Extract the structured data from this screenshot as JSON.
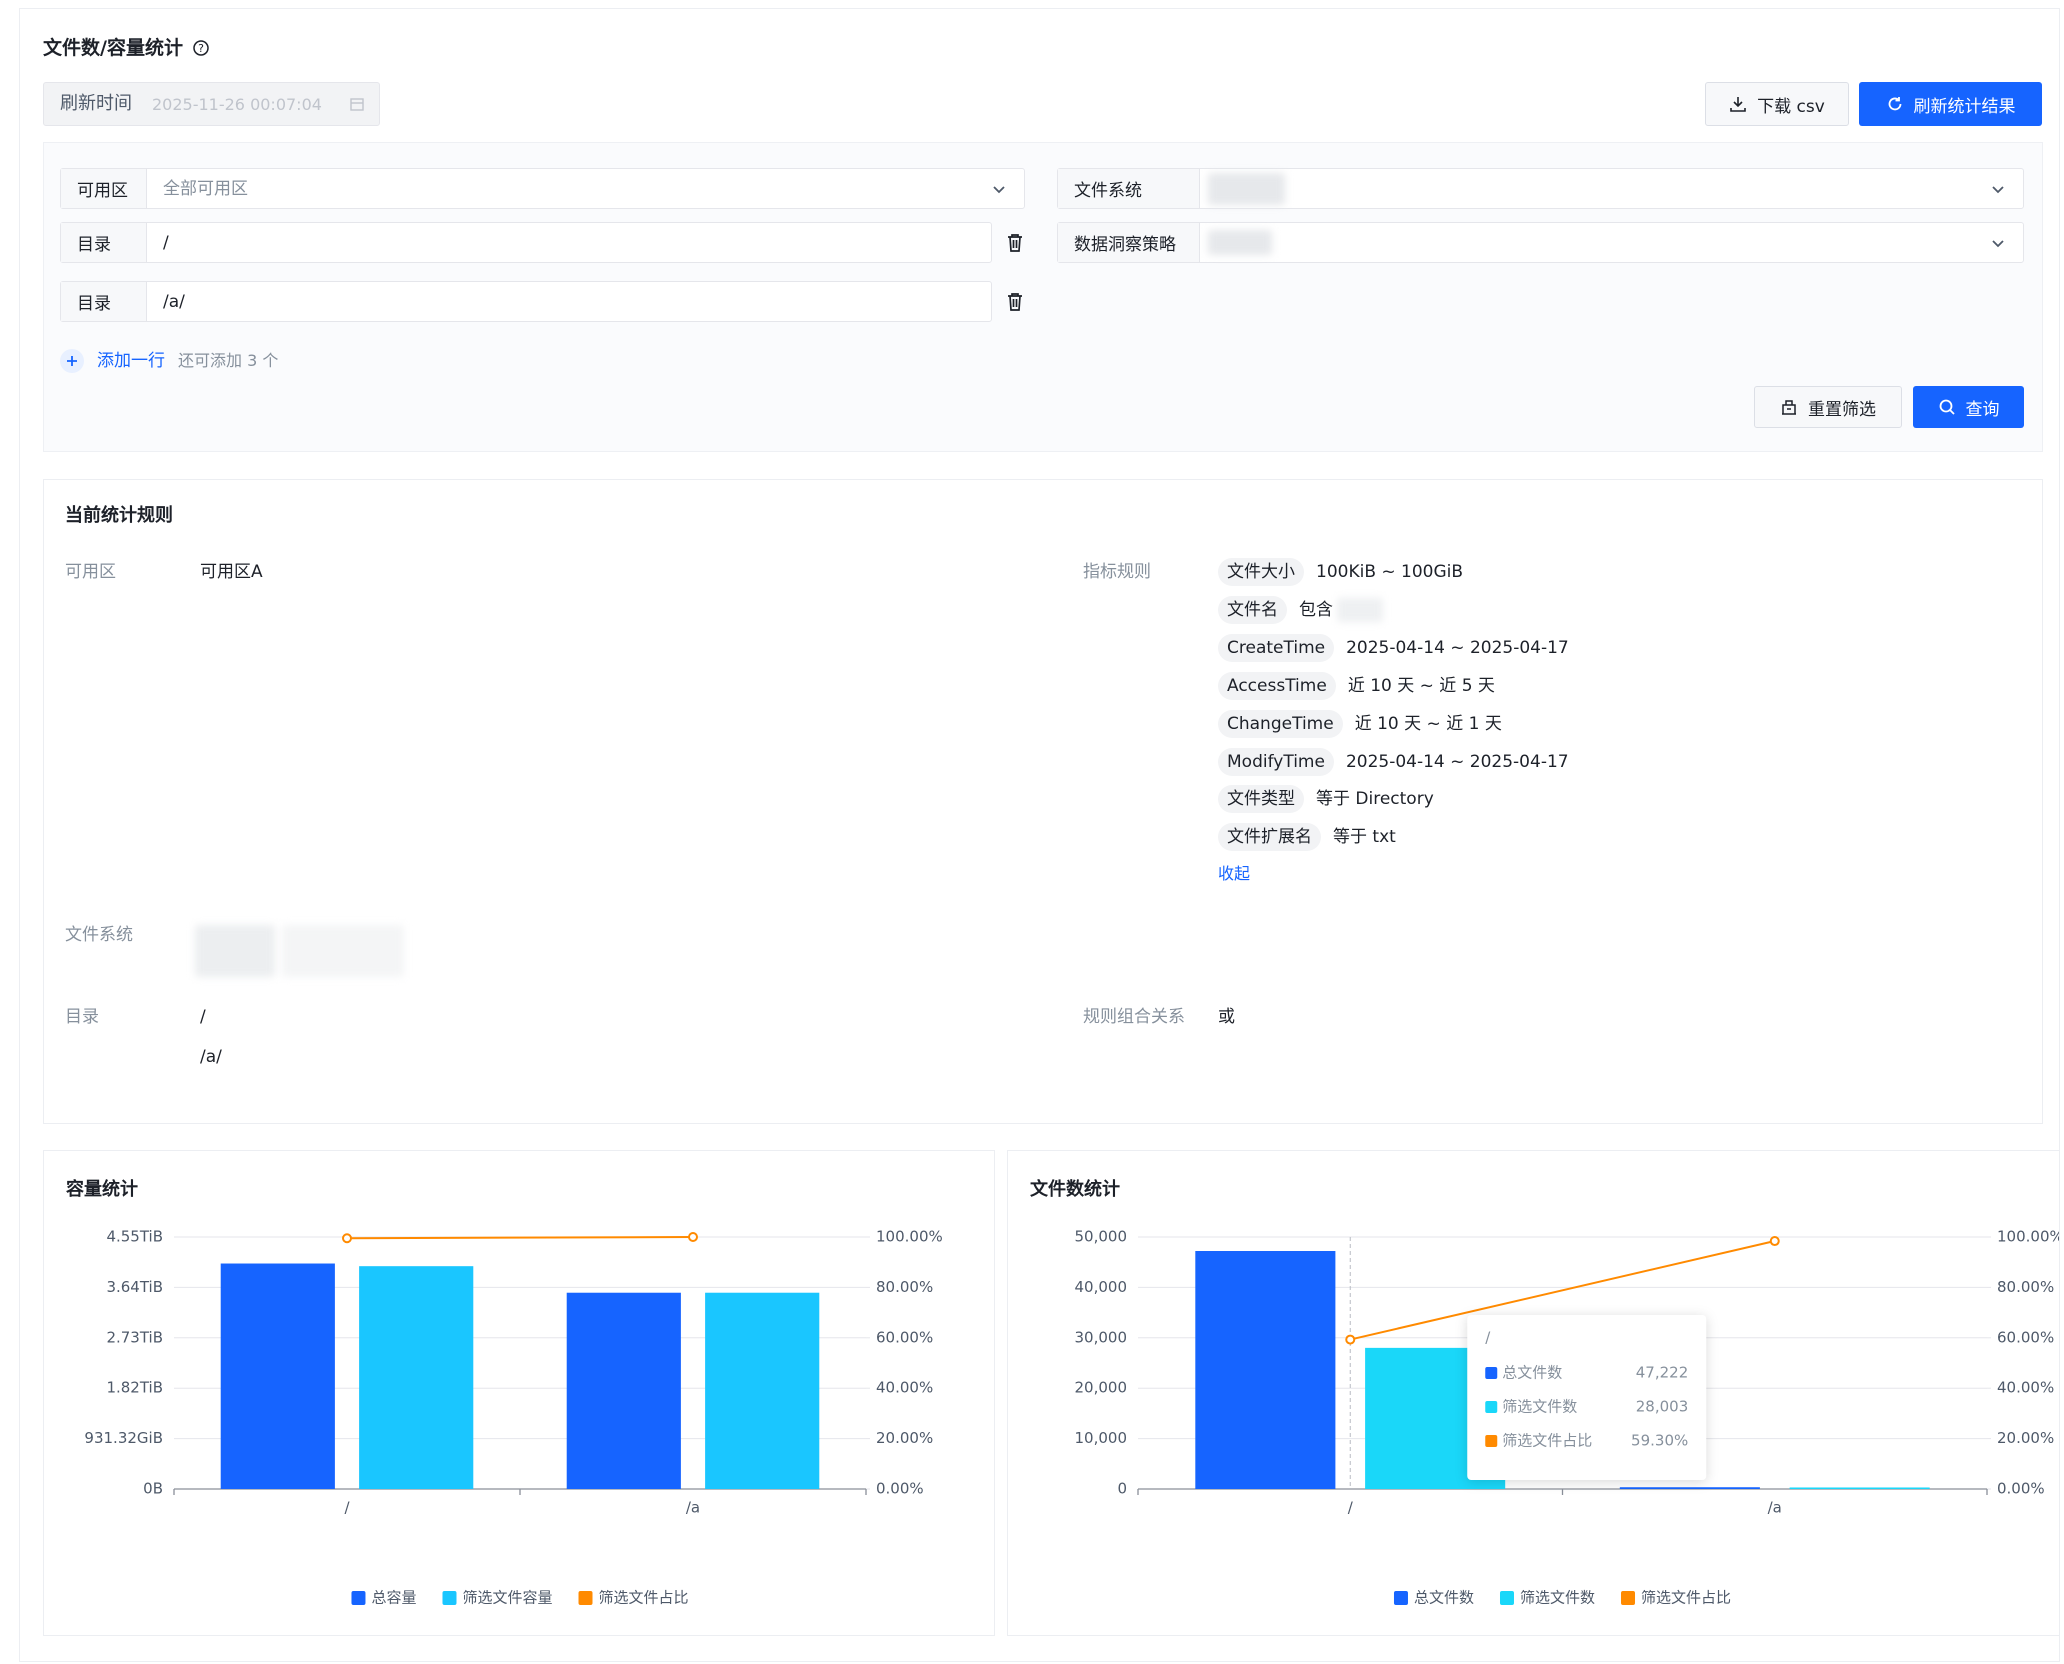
{
  "header": {
    "title": "文件数/容量统计",
    "refresh_label": "刷新时间",
    "refresh_time": "2025-11-26 00:07:04",
    "download_button": "下载 csv",
    "refresh_button": "刷新统计结果"
  },
  "filters": {
    "zone": {
      "label": "可用区",
      "placeholder": "全部可用区"
    },
    "directories": [
      {
        "label": "目录",
        "value": "/"
      },
      {
        "label": "目录",
        "value": "/a/"
      }
    ],
    "file_system": {
      "label": "文件系统"
    },
    "policy": {
      "label": "数据洞察策略"
    },
    "add_row": "添加一行",
    "add_hint": "还可添加 3 个",
    "reset_button": "重置筛选",
    "query_button": "查询"
  },
  "rules": {
    "title": "当前统计规则",
    "zone": {
      "label": "可用区",
      "value": "可用区A"
    },
    "metrics": {
      "label": "指标规则",
      "items": [
        {
          "tag": "文件大小",
          "value": "100KiB ~ 100GiB"
        },
        {
          "tag": "文件名",
          "value": "包含"
        },
        {
          "tag": "CreateTime",
          "value": "2025-04-14 ~ 2025-04-17"
        },
        {
          "tag": "AccessTime",
          "value": "近 10 天 ~ 近 5 天"
        },
        {
          "tag": "ChangeTime",
          "value": "近 10 天 ~ 近 1 天"
        },
        {
          "tag": "ModifyTime",
          "value": "2025-04-14 ~ 2025-04-17"
        },
        {
          "tag": "文件类型",
          "value": "等于 Directory"
        },
        {
          "tag": "文件扩展名",
          "value": "等于 txt"
        }
      ],
      "collapse": "收起"
    },
    "file_system": {
      "label": "文件系统"
    },
    "directories": {
      "label": "目录",
      "values": [
        "/",
        "/a/"
      ]
    },
    "relation": {
      "label": "规则组合关系",
      "value": "或"
    }
  },
  "charts": [
    {
      "type": "bar",
      "title": "容量统计",
      "categories": [
        "/",
        "/a"
      ],
      "series": [
        {
          "name": "总容量",
          "color": "#1664ff",
          "values": [
            4.069,
            3.542
          ]
        },
        {
          "name": "筛选文件容量",
          "color": "#1ac6ff",
          "values": [
            4.021,
            3.542
          ]
        },
        {
          "name": "筛选文件占比",
          "color": "#ff8a00",
          "type": "line",
          "axis": "y2",
          "values": [
            99.5,
            100
          ]
        }
      ],
      "ylim": [
        0,
        4.5475
      ],
      "yticks": [
        {
          "value": 0,
          "label": "0B"
        },
        {
          "value": 0.9095,
          "label": "931.32GiB"
        },
        {
          "value": 1.819,
          "label": "1.82TiB"
        },
        {
          "value": 2.7285,
          "label": "2.73TiB"
        },
        {
          "value": 3.638,
          "label": "3.64TiB"
        },
        {
          "value": 4.5475,
          "label": "4.55TiB"
        }
      ],
      "y2lim": [
        0,
        100
      ],
      "y2ticks": [
        {
          "value": 0,
          "label": "0.00%"
        },
        {
          "value": 20,
          "label": "20.00%"
        },
        {
          "value": 40,
          "label": "40.00%"
        },
        {
          "value": 60,
          "label": "60.00%"
        },
        {
          "value": 80,
          "label": "80.00%"
        },
        {
          "value": 100,
          "label": "100.00%"
        }
      ],
      "grid": true,
      "legend": "bottom"
    },
    {
      "type": "bar",
      "title": "文件数统计",
      "categories": [
        "/",
        "/a"
      ],
      "series": [
        {
          "name": "总文件数",
          "color": "#1664ff",
          "values": [
            47222,
            350
          ],
          "value_labels": [
            "47,222",
            null
          ]
        },
        {
          "name": "筛选文件数",
          "color": "#1ad7f9",
          "values": [
            28003,
            300
          ],
          "value_labels": [
            "28,003",
            null
          ]
        },
        {
          "name": "筛选文件占比",
          "color": "#ff8a00",
          "type": "line",
          "axis": "y2",
          "values": [
            59.3,
            98.4
          ],
          "value_labels": [
            "59.30%",
            null
          ]
        }
      ],
      "ylim": [
        0,
        50000
      ],
      "yticks": [
        0,
        {
          "value": 10000,
          "label": "10,000"
        },
        {
          "value": 20000,
          "label": "20,000"
        },
        {
          "value": 30000,
          "label": "30,000"
        },
        {
          "value": 40000,
          "label": "40,000"
        },
        {
          "value": 50000,
          "label": "50,000"
        }
      ],
      "y2lim": [
        0,
        100
      ],
      "y2ticks": [
        {
          "value": 0,
          "label": "0.00%"
        },
        {
          "value": 20,
          "label": "20.00%"
        },
        {
          "value": 40,
          "label": "40.00%"
        },
        {
          "value": 60,
          "label": "60.00%"
        },
        {
          "value": 80,
          "label": "80.00%"
        },
        {
          "value": 100,
          "label": "100.00%"
        }
      ],
      "grid": true,
      "legend": "bottom"
    }
  ]
}
